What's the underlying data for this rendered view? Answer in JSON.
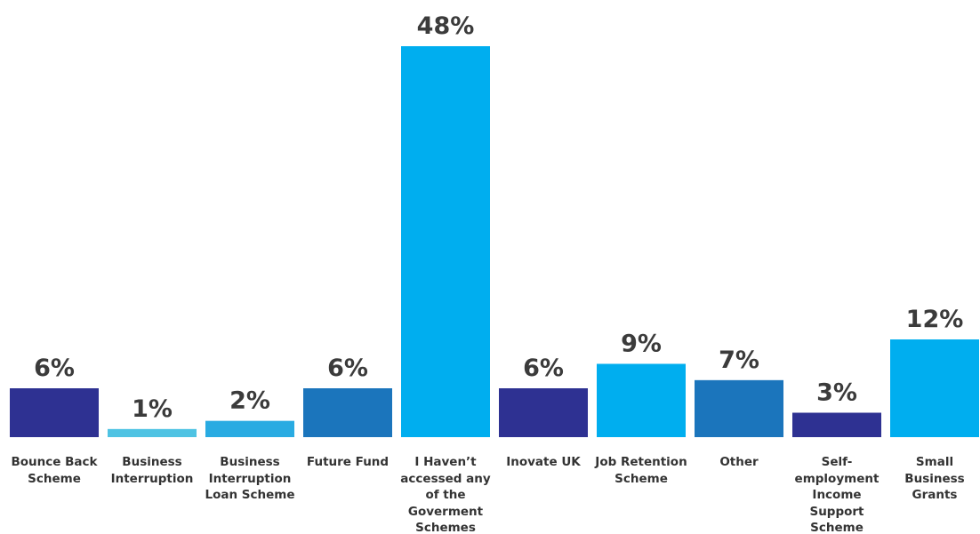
{
  "chart_data": {
    "type": "bar",
    "categories": [
      "Bounce Back Scheme",
      "Business Interruption",
      "Business Interruption Loan Scheme",
      "Future Fund",
      "I Haven’t accessed any of the Goverment Schemes",
      "Inovate UK",
      "Job Retention Scheme",
      "Other",
      "Self-employment Income Support Scheme",
      "Small Business Grants"
    ],
    "values": [
      6,
      1,
      2,
      6,
      48,
      6,
      9,
      7,
      3,
      12
    ],
    "value_labels": [
      "6%",
      "1%",
      "2%",
      "6%",
      "48%",
      "6%",
      "9%",
      "7%",
      "3%",
      "12%"
    ],
    "colors": [
      "#2e3192",
      "#4fc3e3",
      "#29abe2",
      "#1b75bc",
      "#00aeef",
      "#2e3192",
      "#00aeef",
      "#1b75bc",
      "#2e3192",
      "#00aeef"
    ]
  }
}
